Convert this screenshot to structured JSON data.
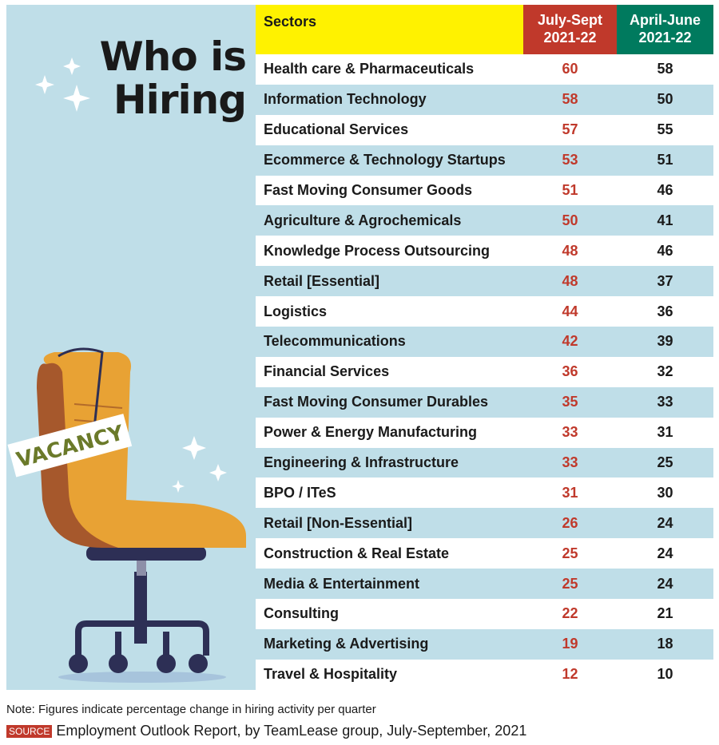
{
  "title": "Who is Hiring",
  "chair_sign": "VACANCY",
  "note": "Note: Figures indicate percentage change in hiring activity per quarter",
  "source_label": "SOURCE",
  "source_text": "Employment Outlook Report, by TeamLease group, July-September, 2021",
  "colors": {
    "july_sept": "#c0392b",
    "april_june": "#007a5e",
    "sectors_header": "#fff200",
    "band": "#bfdee8"
  },
  "chart_data": {
    "type": "table",
    "title": "Who is Hiring",
    "columns": [
      "Sectors",
      "July-Sept 2021-22",
      "April-June 2021-22"
    ],
    "column_lines": [
      [
        "Sectors"
      ],
      [
        "July-Sept",
        "2021-22"
      ],
      [
        "April-June",
        "2021-22"
      ]
    ],
    "rows": [
      [
        "Health care & Pharmaceuticals",
        60,
        58
      ],
      [
        "Information Technology",
        58,
        50
      ],
      [
        "Educational Services",
        57,
        55
      ],
      [
        "Ecommerce & Technology Startups",
        53,
        51
      ],
      [
        "Fast Moving Consumer Goods",
        51,
        46
      ],
      [
        "Agriculture & Agrochemicals",
        50,
        41
      ],
      [
        "Knowledge Process Outsourcing",
        48,
        46
      ],
      [
        "Retail [Essential]",
        48,
        37
      ],
      [
        "Logistics",
        44,
        36
      ],
      [
        "Telecommunications",
        42,
        39
      ],
      [
        "Financial Services",
        36,
        32
      ],
      [
        "Fast Moving Consumer Durables",
        35,
        33
      ],
      [
        "Power & Energy Manufacturing",
        33,
        31
      ],
      [
        "Engineering & Infrastructure",
        33,
        25
      ],
      [
        "BPO / ITeS",
        31,
        30
      ],
      [
        "Retail [Non-Essential]",
        26,
        24
      ],
      [
        "Construction & Real Estate",
        25,
        24
      ],
      [
        "Media & Entertainment",
        25,
        24
      ],
      [
        "Consulting",
        22,
        21
      ],
      [
        "Marketing & Advertising",
        19,
        18
      ],
      [
        "Travel & Hospitality",
        12,
        10
      ]
    ]
  }
}
